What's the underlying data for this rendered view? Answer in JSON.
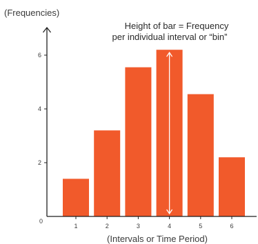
{
  "chart_data": {
    "type": "bar",
    "categories": [
      "1",
      "2",
      "3",
      "4",
      "5",
      "6"
    ],
    "values": [
      1.4,
      3.2,
      5.55,
      6.2,
      4.55,
      2.2
    ],
    "ylim": [
      0,
      7
    ],
    "yticks": [
      "2",
      "4",
      "6"
    ],
    "origin_label": "0",
    "ylabel": "(Frequencies)",
    "xlabel": "(Intervals or Time Period)",
    "annotation_lines": [
      "Height of bar = Frequency",
      "per individual interval or “bin”"
    ],
    "annotated_category": "4",
    "grid": false,
    "bar_color": "#f15a2b",
    "arrow_color": "#ffffff",
    "axis_color": "#1f1f1f"
  }
}
